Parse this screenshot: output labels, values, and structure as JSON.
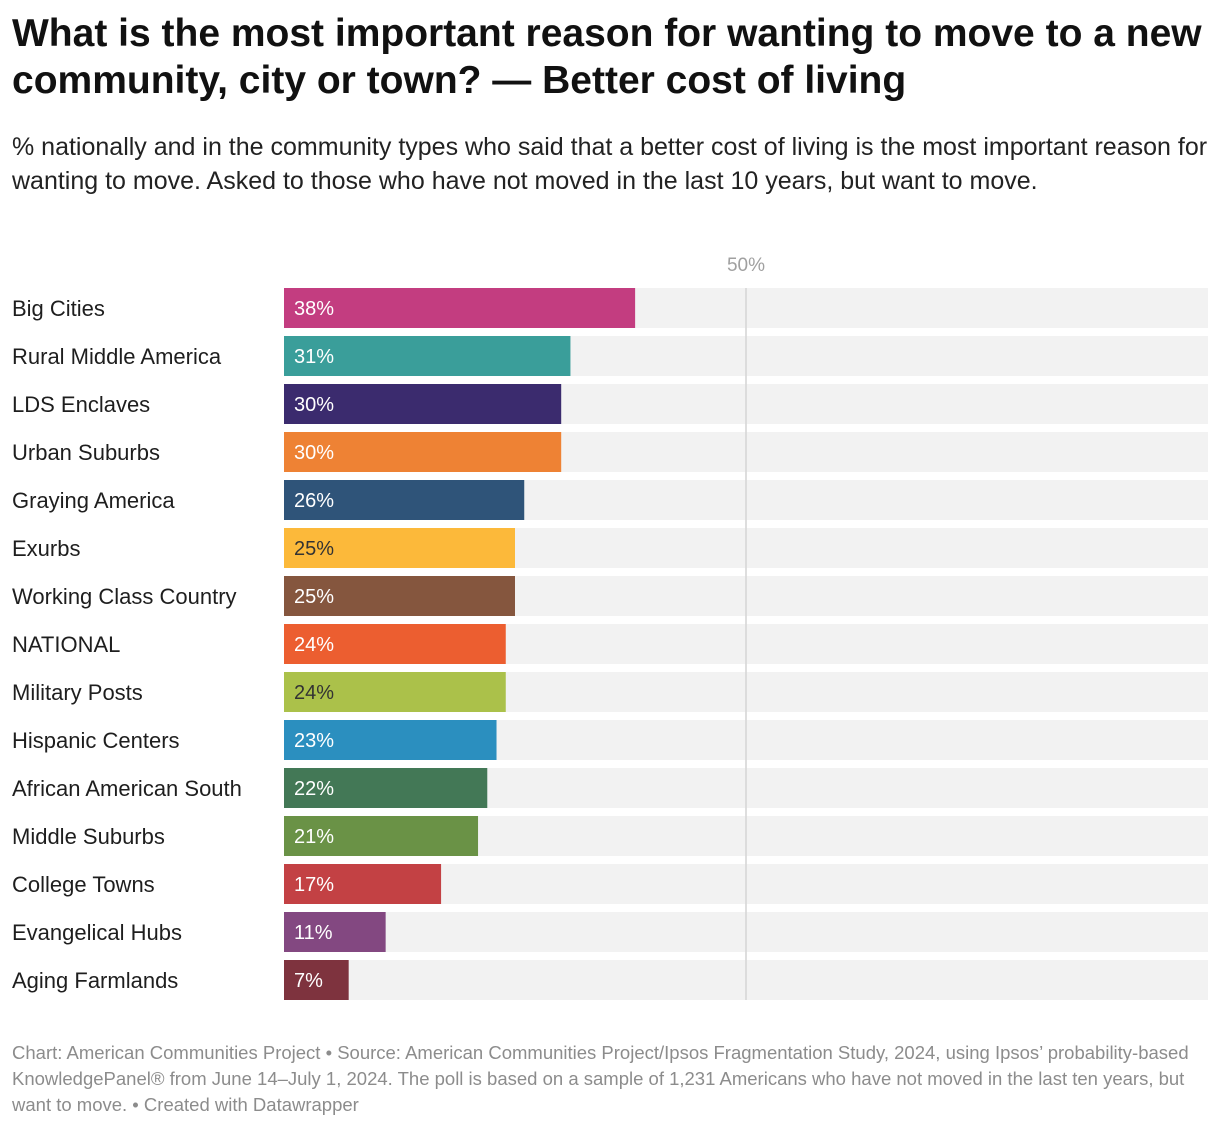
{
  "header": {
    "title": "What is the most important reason for wanting to move to a new community, city or town? — Better cost of living",
    "subtitle": "% nationally and in the community types who said that a better cost of living is the most important reason for wanting to move. Asked to those who have not moved in the last 10 years, but want to move."
  },
  "chart_data": {
    "type": "bar",
    "orientation": "horizontal",
    "title": "What is the most important reason for wanting to move to a new community, city or town? — Better cost of living",
    "xlabel": "",
    "ylabel": "",
    "xlim": [
      0,
      100
    ],
    "unit": "%",
    "reference_line": {
      "value": 50,
      "label": "50%"
    },
    "background_bar_value": 100,
    "categories": [
      "Big Cities",
      "Rural Middle America",
      "LDS Enclaves",
      "Urban Suburbs",
      "Graying America",
      "Exurbs",
      "Working Class Country",
      "NATIONAL",
      "Military Posts",
      "Hispanic Centers",
      "African American South",
      "Middle Suburbs",
      "College Towns",
      "Evangelical Hubs",
      "Aging Farmlands"
    ],
    "values": [
      38,
      31,
      30,
      30,
      26,
      25,
      25,
      24,
      24,
      23,
      22,
      21,
      17,
      11,
      7
    ],
    "value_labels": [
      "38%",
      "31%",
      "30%",
      "30%",
      "26%",
      "25%",
      "25%",
      "24%",
      "24%",
      "23%",
      "22%",
      "21%",
      "17%",
      "11%",
      "7%"
    ],
    "colors": [
      "#c33d80",
      "#3a9e9a",
      "#3b2b6e",
      "#ee8234",
      "#2f5479",
      "#fcb93a",
      "#85563e",
      "#ec5e30",
      "#abc14a",
      "#2b8fbf",
      "#437856",
      "#6a9246",
      "#c34144",
      "#834881",
      "#7e333e"
    ],
    "label_colors": [
      "#ffffff",
      "#ffffff",
      "#ffffff",
      "#ffffff",
      "#ffffff",
      "#333333",
      "#ffffff",
      "#ffffff",
      "#333333",
      "#ffffff",
      "#ffffff",
      "#ffffff",
      "#ffffff",
      "#ffffff",
      "#ffffff"
    ],
    "background_color": "#f2f2f2",
    "reference_line_color": "#d4d4d4"
  },
  "footer": {
    "text": "Chart: American Communities Project • Source: American Communities Project/Ipsos Fragmentation Study, 2024, using Ipsos’ probability-based KnowledgePanel® from June 14–July 1, 2024. The poll is based on a sample of 1,231 Americans who have not moved in the last ten years, but want to move. • Created with Datawrapper"
  }
}
